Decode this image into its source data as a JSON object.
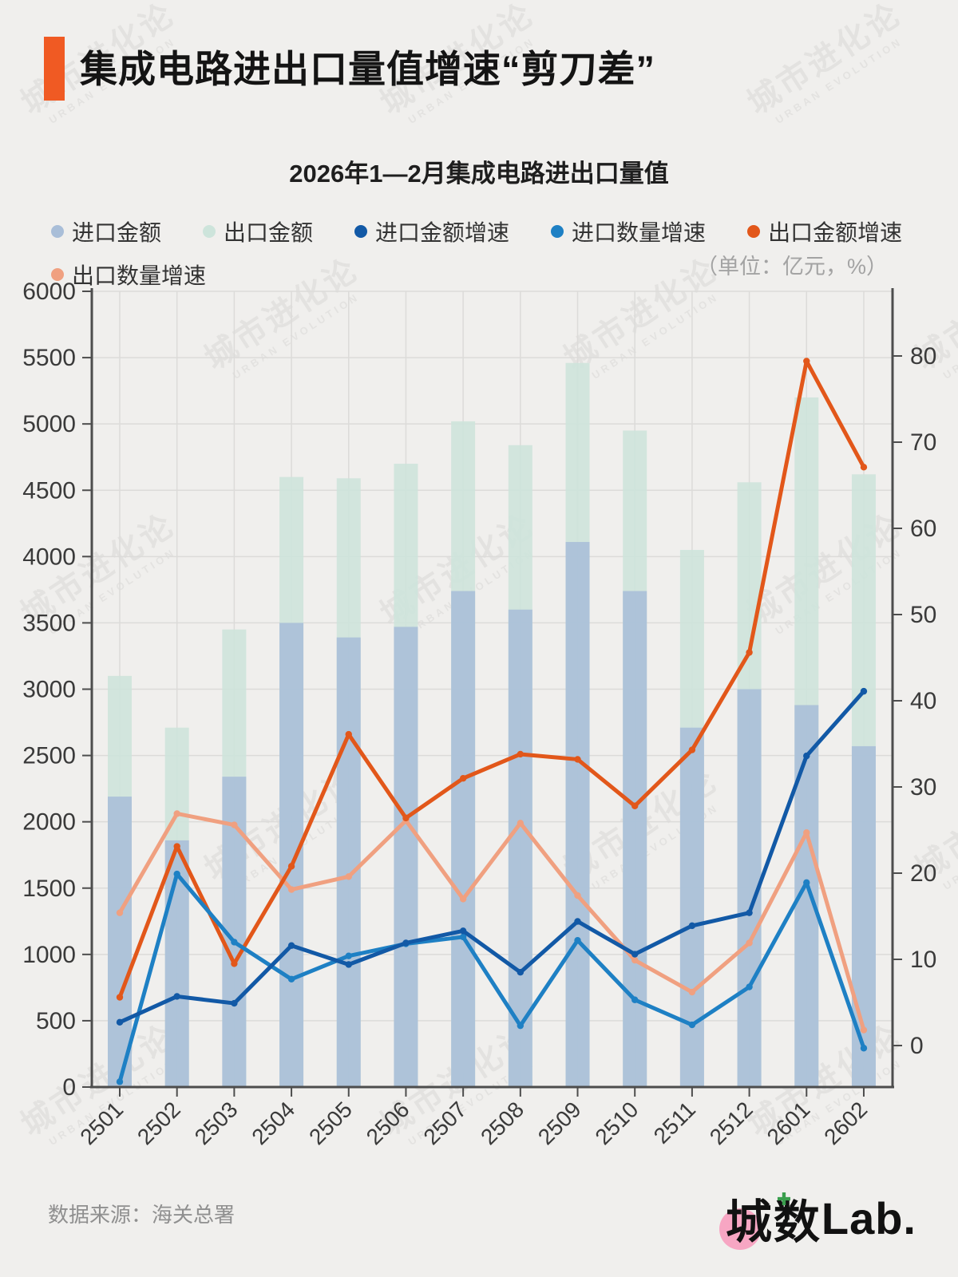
{
  "page": {
    "bg_color": "#f0efed"
  },
  "header": {
    "title": "集成电路进出口量值增速“剪刀差”",
    "accent_color": "#f05a23"
  },
  "subtitle": "2026年1—2月集成电路进出口量值",
  "legend": {
    "unit_note": "（单位：亿元，%）"
  },
  "watermark": {
    "line1": "城市进化论",
    "line2": "URBAN EVOLUTION"
  },
  "footer": {
    "source": "数据来源：海关总署",
    "logo": {
      "char1": "城",
      "char2": "数",
      "latin": "Lab.",
      "circle_color": "#f7a6c3",
      "plus": "✚"
    }
  },
  "chart_data": {
    "type": "combo bar+line",
    "categories": [
      "2501",
      "2502",
      "2503",
      "2504",
      "2505",
      "2506",
      "2507",
      "2508",
      "2509",
      "2510",
      "2511",
      "2512",
      "2601",
      "2602"
    ],
    "bar_series": [
      {
        "name": "进口金额",
        "color": "#a9bed8",
        "yaxis": "left",
        "values": [
          2190,
          1860,
          2340,
          3500,
          3390,
          3470,
          3740,
          3600,
          4110,
          3740,
          2710,
          3000,
          2880,
          2570
        ]
      },
      {
        "name": "出口金额",
        "color": "#cde4db",
        "yaxis": "left",
        "values": [
          3100,
          2710,
          3450,
          4600,
          4590,
          4700,
          5020,
          4840,
          5460,
          4950,
          4050,
          4560,
          5200,
          4620
        ]
      }
    ],
    "line_series": [
      {
        "name": "进口金额增速",
        "color": "#1259a6",
        "yaxis": "right",
        "values": [
          2.7,
          5.7,
          4.9,
          11.6,
          9.4,
          11.9,
          13.3,
          8.5,
          14.4,
          10.6,
          13.9,
          15.4,
          33.6,
          41.1
        ]
      },
      {
        "name": "进口数量增速",
        "color": "#1e80c4",
        "yaxis": "right",
        "values": [
          -4.2,
          19.9,
          12.0,
          7.7,
          10.4,
          11.8,
          12.6,
          2.3,
          12.2,
          5.3,
          2.4,
          6.8,
          18.9,
          -0.3
        ]
      },
      {
        "name": "出口金额增速",
        "color": "#e2571a",
        "yaxis": "right",
        "values": [
          5.6,
          23.1,
          9.5,
          20.8,
          36.1,
          26.4,
          31.0,
          33.8,
          33.2,
          27.8,
          34.3,
          45.6,
          79.4,
          67.1
        ]
      },
      {
        "name": "出口数量增速",
        "color": "#f0a080",
        "yaxis": "right",
        "values": [
          15.4,
          26.9,
          25.6,
          18.1,
          19.6,
          26.1,
          17.0,
          25.8,
          17.4,
          9.9,
          6.2,
          11.9,
          24.7,
          1.8
        ]
      }
    ],
    "left_axis": {
      "min": 0,
      "max": 6000,
      "tick_labels": [
        0,
        500,
        1000,
        1500,
        2000,
        2500,
        3000,
        3500,
        4000,
        4500,
        5000,
        5500,
        6000
      ]
    },
    "right_axis": {
      "tick_labels": [
        0,
        10,
        20,
        30,
        40,
        50,
        60,
        70,
        80
      ]
    },
    "grid": {
      "horizontal": true,
      "vertical": true
    },
    "legend_position": "top-left, two rows"
  }
}
